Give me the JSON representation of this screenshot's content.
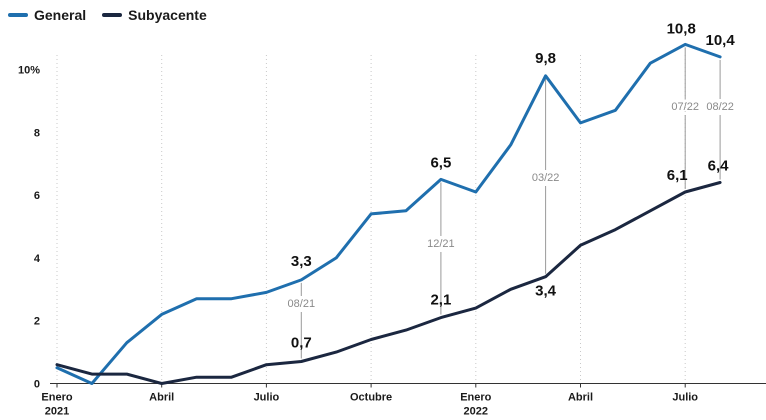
{
  "chart_data": {
    "type": "line",
    "title": "",
    "xlabel": "",
    "ylabel": "",
    "ylim": [
      0,
      10
    ],
    "grid": "vertical-dotted",
    "legend_placement": "top-left",
    "yticks": [
      "0",
      "2",
      "4",
      "6",
      "8",
      "10%"
    ],
    "x_tick_labels": [
      {
        "month": 0,
        "lines": [
          "Enero",
          "2021"
        ]
      },
      {
        "month": 3,
        "lines": [
          "Abril"
        ]
      },
      {
        "month": 6,
        "lines": [
          "Julio"
        ]
      },
      {
        "month": 9,
        "lines": [
          "Octubre"
        ]
      },
      {
        "month": 12,
        "lines": [
          "Enero",
          "2022"
        ]
      },
      {
        "month": 15,
        "lines": [
          "Abril"
        ]
      },
      {
        "month": 18,
        "lines": [
          "Julio"
        ]
      }
    ],
    "x": [
      "2021-01",
      "2021-02",
      "2021-03",
      "2021-04",
      "2021-05",
      "2021-06",
      "2021-07",
      "2021-08",
      "2021-09",
      "2021-10",
      "2021-11",
      "2021-12",
      "2022-01",
      "2022-02",
      "2022-03",
      "2022-04",
      "2022-05",
      "2022-06",
      "2022-07",
      "2022-08"
    ],
    "series": [
      {
        "name": "General",
        "color": "#1f6fae",
        "values": [
          0.5,
          0.0,
          1.3,
          2.2,
          2.7,
          2.7,
          2.9,
          3.3,
          4.0,
          5.4,
          5.5,
          6.5,
          6.1,
          7.6,
          9.8,
          8.3,
          8.7,
          10.2,
          10.8,
          10.4
        ]
      },
      {
        "name": "Subyacente",
        "color": "#1b2740",
        "values": [
          0.6,
          0.3,
          0.3,
          0.0,
          0.2,
          0.2,
          0.6,
          0.7,
          1.0,
          1.4,
          1.7,
          2.1,
          2.4,
          3.0,
          3.4,
          4.4,
          4.9,
          5.5,
          6.1,
          6.4
        ]
      }
    ],
    "data_labels": [
      {
        "series": 0,
        "index": 7,
        "text": "3,3"
      },
      {
        "series": 0,
        "index": 11,
        "text": "6,5"
      },
      {
        "series": 0,
        "index": 14,
        "text": "9,8"
      },
      {
        "series": 0,
        "index": 18,
        "text": "10,8"
      },
      {
        "series": 0,
        "index": 19,
        "text": "10,4"
      },
      {
        "series": 1,
        "index": 7,
        "text": "0,7"
      },
      {
        "series": 1,
        "index": 11,
        "text": "2,1"
      },
      {
        "series": 1,
        "index": 14,
        "text": "3,4"
      },
      {
        "series": 1,
        "index": 18,
        "text": "6,1"
      },
      {
        "series": 1,
        "index": 19,
        "text": "6,4"
      }
    ],
    "date_annotations": [
      {
        "index": 7,
        "text": "08/21"
      },
      {
        "index": 11,
        "text": "12/21"
      },
      {
        "index": 14,
        "text": "03/22"
      },
      {
        "index": 18,
        "text": "07/22"
      },
      {
        "index": 19,
        "text": "08/22"
      }
    ]
  }
}
